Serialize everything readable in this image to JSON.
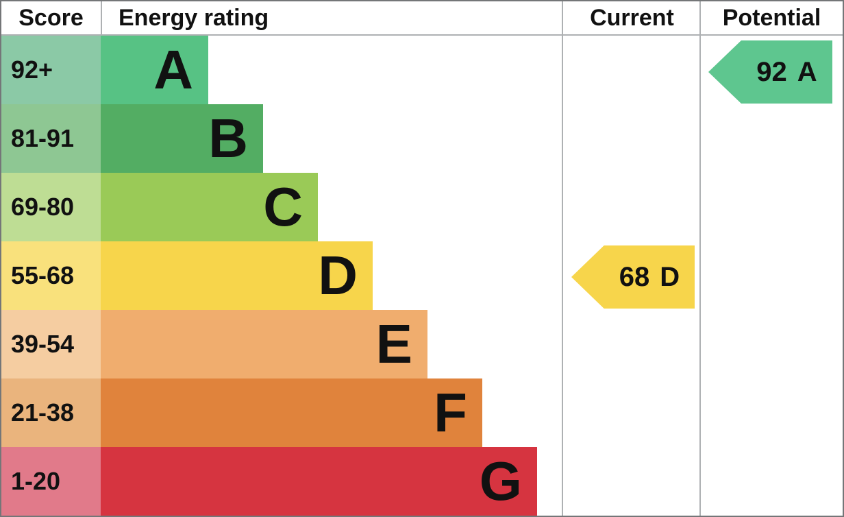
{
  "header": {
    "score": "Score",
    "energy_rating": "Energy rating",
    "current": "Current",
    "potential": "Potential"
  },
  "chart_data": {
    "type": "bar",
    "title": "Energy rating",
    "description": "EPC energy efficiency rating chart with bands A-G; bar length increases from A to G",
    "columns": [
      "Score",
      "Energy rating",
      "Current",
      "Potential"
    ],
    "bands": [
      {
        "letter": "A",
        "score_range": "92+",
        "bar_color": "#57c284",
        "score_cell_color": "#8bc9a6"
      },
      {
        "letter": "B",
        "score_range": "81-91",
        "bar_color": "#53ad63",
        "score_cell_color": "#8ec793"
      },
      {
        "letter": "C",
        "score_range": "69-80",
        "bar_color": "#9aca57",
        "score_cell_color": "#bedd94"
      },
      {
        "letter": "D",
        "score_range": "55-68",
        "bar_color": "#f7d54b",
        "score_cell_color": "#f9e17c"
      },
      {
        "letter": "E",
        "score_range": "39-54",
        "bar_color": "#f0ad6e",
        "score_cell_color": "#f5cda1"
      },
      {
        "letter": "F",
        "score_range": "21-38",
        "bar_color": "#e0833c",
        "score_cell_color": "#eab47d"
      },
      {
        "letter": "G",
        "score_range": "1-20",
        "bar_color": "#d63440",
        "score_cell_color": "#e17a8a"
      }
    ],
    "current": {
      "score": "68",
      "band": "D",
      "color": "#f7d54b"
    },
    "potential": {
      "score": "92",
      "band": "A",
      "color": "#5ec68f"
    }
  }
}
